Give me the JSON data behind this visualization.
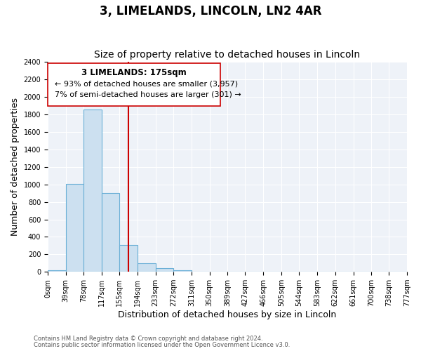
{
  "title": "3, LIMELANDS, LINCOLN, LN2 4AR",
  "subtitle": "Size of property relative to detached houses in Lincoln",
  "xlabel": "Distribution of detached houses by size in Lincoln",
  "ylabel": "Number of detached properties",
  "bar_edges": [
    0,
    39,
    78,
    117,
    155,
    194,
    233,
    272,
    311,
    350,
    389,
    427,
    466,
    505,
    544,
    583,
    622,
    661,
    700,
    738,
    777
  ],
  "bar_heights": [
    20,
    1005,
    1860,
    900,
    305,
    100,
    45,
    20,
    0,
    0,
    0,
    0,
    0,
    0,
    0,
    0,
    0,
    0,
    0,
    0
  ],
  "bar_color": "#cce0f0",
  "bar_edge_color": "#6aafd6",
  "ylim": [
    0,
    2400
  ],
  "yticks": [
    0,
    200,
    400,
    600,
    800,
    1000,
    1200,
    1400,
    1600,
    1800,
    2000,
    2200,
    2400
  ],
  "xtick_labels": [
    "0sqm",
    "39sqm",
    "78sqm",
    "117sqm",
    "155sqm",
    "194sqm",
    "233sqm",
    "272sqm",
    "311sqm",
    "350sqm",
    "389sqm",
    "427sqm",
    "466sqm",
    "505sqm",
    "544sqm",
    "583sqm",
    "622sqm",
    "661sqm",
    "700sqm",
    "738sqm",
    "777sqm"
  ],
  "property_value": 175,
  "property_line_color": "#cc0000",
  "annotation_title": "3 LIMELANDS: 175sqm",
  "annotation_line1": "← 93% of detached houses are smaller (3,957)",
  "annotation_line2": "7% of semi-detached houses are larger (301) →",
  "footer1": "Contains HM Land Registry data © Crown copyright and database right 2024.",
  "footer2": "Contains public sector information licensed under the Open Government Licence v3.0.",
  "bg_color": "#ffffff",
  "plot_bg_color": "#eef2f8",
  "grid_color": "#ffffff",
  "title_fontsize": 12,
  "subtitle_fontsize": 10,
  "label_fontsize": 9,
  "tick_fontsize": 7
}
